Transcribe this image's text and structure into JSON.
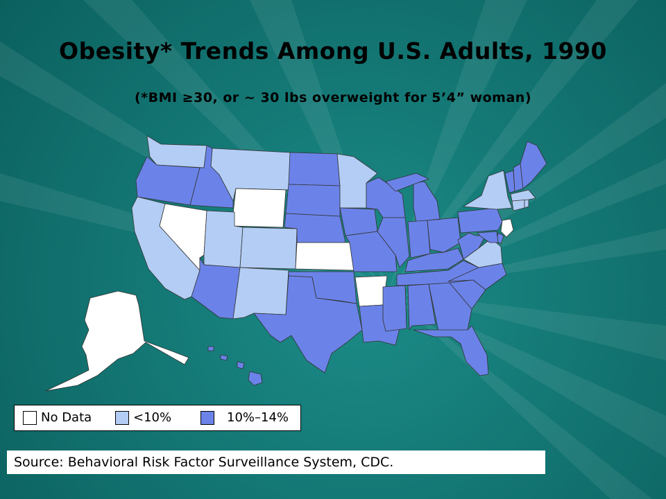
{
  "slide": {
    "title": "Obesity* Trends Among U.S. Adults, 1990",
    "subtitle": "(*BMI ≥30, or ~ 30 lbs overweight for 5’4” woman)",
    "source": "Source: Behavioral Risk Factor Surveillance System, CDC."
  },
  "colors": {
    "background": "#0e6e6b",
    "no_data": "#ffffff",
    "under_10": "#b3cdf5",
    "from_10_to_14": "#6b83e8"
  },
  "legend": [
    {
      "label": "No Data",
      "category": "no_data"
    },
    {
      "label": "<10%",
      "category": "under_10"
    },
    {
      "label": "10%–14%",
      "category": "from_10_to_14"
    }
  ],
  "chart_data": {
    "type": "choropleth",
    "title": "Obesity* Trends Among U.S. Adults, 1990",
    "categories": [
      "No Data",
      "<10%",
      "10%–14%"
    ],
    "states": {
      "WA": "<10%",
      "OR": "10%–14%",
      "CA": "<10%",
      "NV": "No Data",
      "ID": "10%–14%",
      "MT": "<10%",
      "WY": "No Data",
      "UT": "<10%",
      "CO": "<10%",
      "AZ": "10%–14%",
      "NM": "<10%",
      "ND": "10%–14%",
      "SD": "10%–14%",
      "NE": "10%–14%",
      "KS": "No Data",
      "OK": "10%–14%",
      "TX": "10%–14%",
      "MN": "<10%",
      "IA": "10%–14%",
      "MO": "10%–14%",
      "AR": "No Data",
      "LA": "10%–14%",
      "WI": "10%–14%",
      "IL": "10%–14%",
      "MI": "10%–14%",
      "IN": "10%–14%",
      "OH": "10%–14%",
      "KY": "10%–14%",
      "TN": "10%–14%",
      "MS": "10%–14%",
      "AL": "10%–14%",
      "GA": "10%–14%",
      "FL": "10%–14%",
      "SC": "10%–14%",
      "NC": "10%–14%",
      "VA": "<10%",
      "WV": "10%–14%",
      "PA": "10%–14%",
      "NY": "<10%",
      "NJ": "No Data",
      "DE": "10%–14%",
      "MD": "10%–14%",
      "CT": "<10%",
      "RI": "<10%",
      "MA": "<10%",
      "VT": "10%–14%",
      "NH": "10%–14%",
      "ME": "10%–14%",
      "AK": "No Data",
      "HI": "10%–14%"
    }
  }
}
